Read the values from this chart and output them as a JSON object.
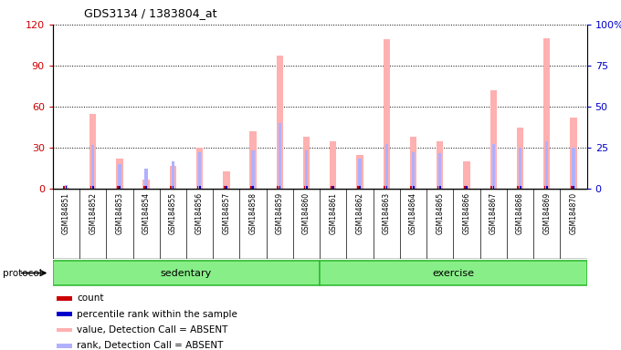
{
  "title": "GDS3134 / 1383804_at",
  "samples": [
    "GSM184851",
    "GSM184852",
    "GSM184853",
    "GSM184854",
    "GSM184855",
    "GSM184856",
    "GSM184857",
    "GSM184858",
    "GSM184859",
    "GSM184860",
    "GSM184861",
    "GSM184862",
    "GSM184863",
    "GSM184864",
    "GSM184865",
    "GSM184866",
    "GSM184867",
    "GSM184868",
    "GSM184869",
    "GSM184870"
  ],
  "pink_values": [
    1,
    55,
    22,
    7,
    17,
    30,
    13,
    42,
    97,
    38,
    35,
    25,
    109,
    38,
    35,
    20,
    72,
    45,
    110,
    52
  ],
  "blue_values": [
    3,
    32,
    18,
    15,
    20,
    27,
    0,
    28,
    48,
    28,
    0,
    22,
    33,
    27,
    26,
    0,
    33,
    30,
    35,
    30
  ],
  "groups": [
    {
      "label": "sedentary",
      "start": 0,
      "end": 10
    },
    {
      "label": "exercise",
      "start": 10,
      "end": 20
    }
  ],
  "ylim_left": [
    0,
    120
  ],
  "ylim_right": [
    0,
    100
  ],
  "left_yticks": [
    0,
    30,
    60,
    90,
    120
  ],
  "right_yticks": [
    0,
    25,
    50,
    75,
    100
  ],
  "right_yticklabels": [
    "0",
    "25",
    "50",
    "75",
    "100%"
  ],
  "plot_bg": "#ffffff",
  "pink_color": "#ffb0b0",
  "blue_color": "#b0b0ff",
  "red_color": "#cc0000",
  "dark_blue_color": "#0000cc",
  "green_fill": "#88ee88",
  "green_edge": "#33bb33",
  "gray_bg": "#d8d8d8",
  "protocol_label": "protocol",
  "bar_width": 0.25
}
